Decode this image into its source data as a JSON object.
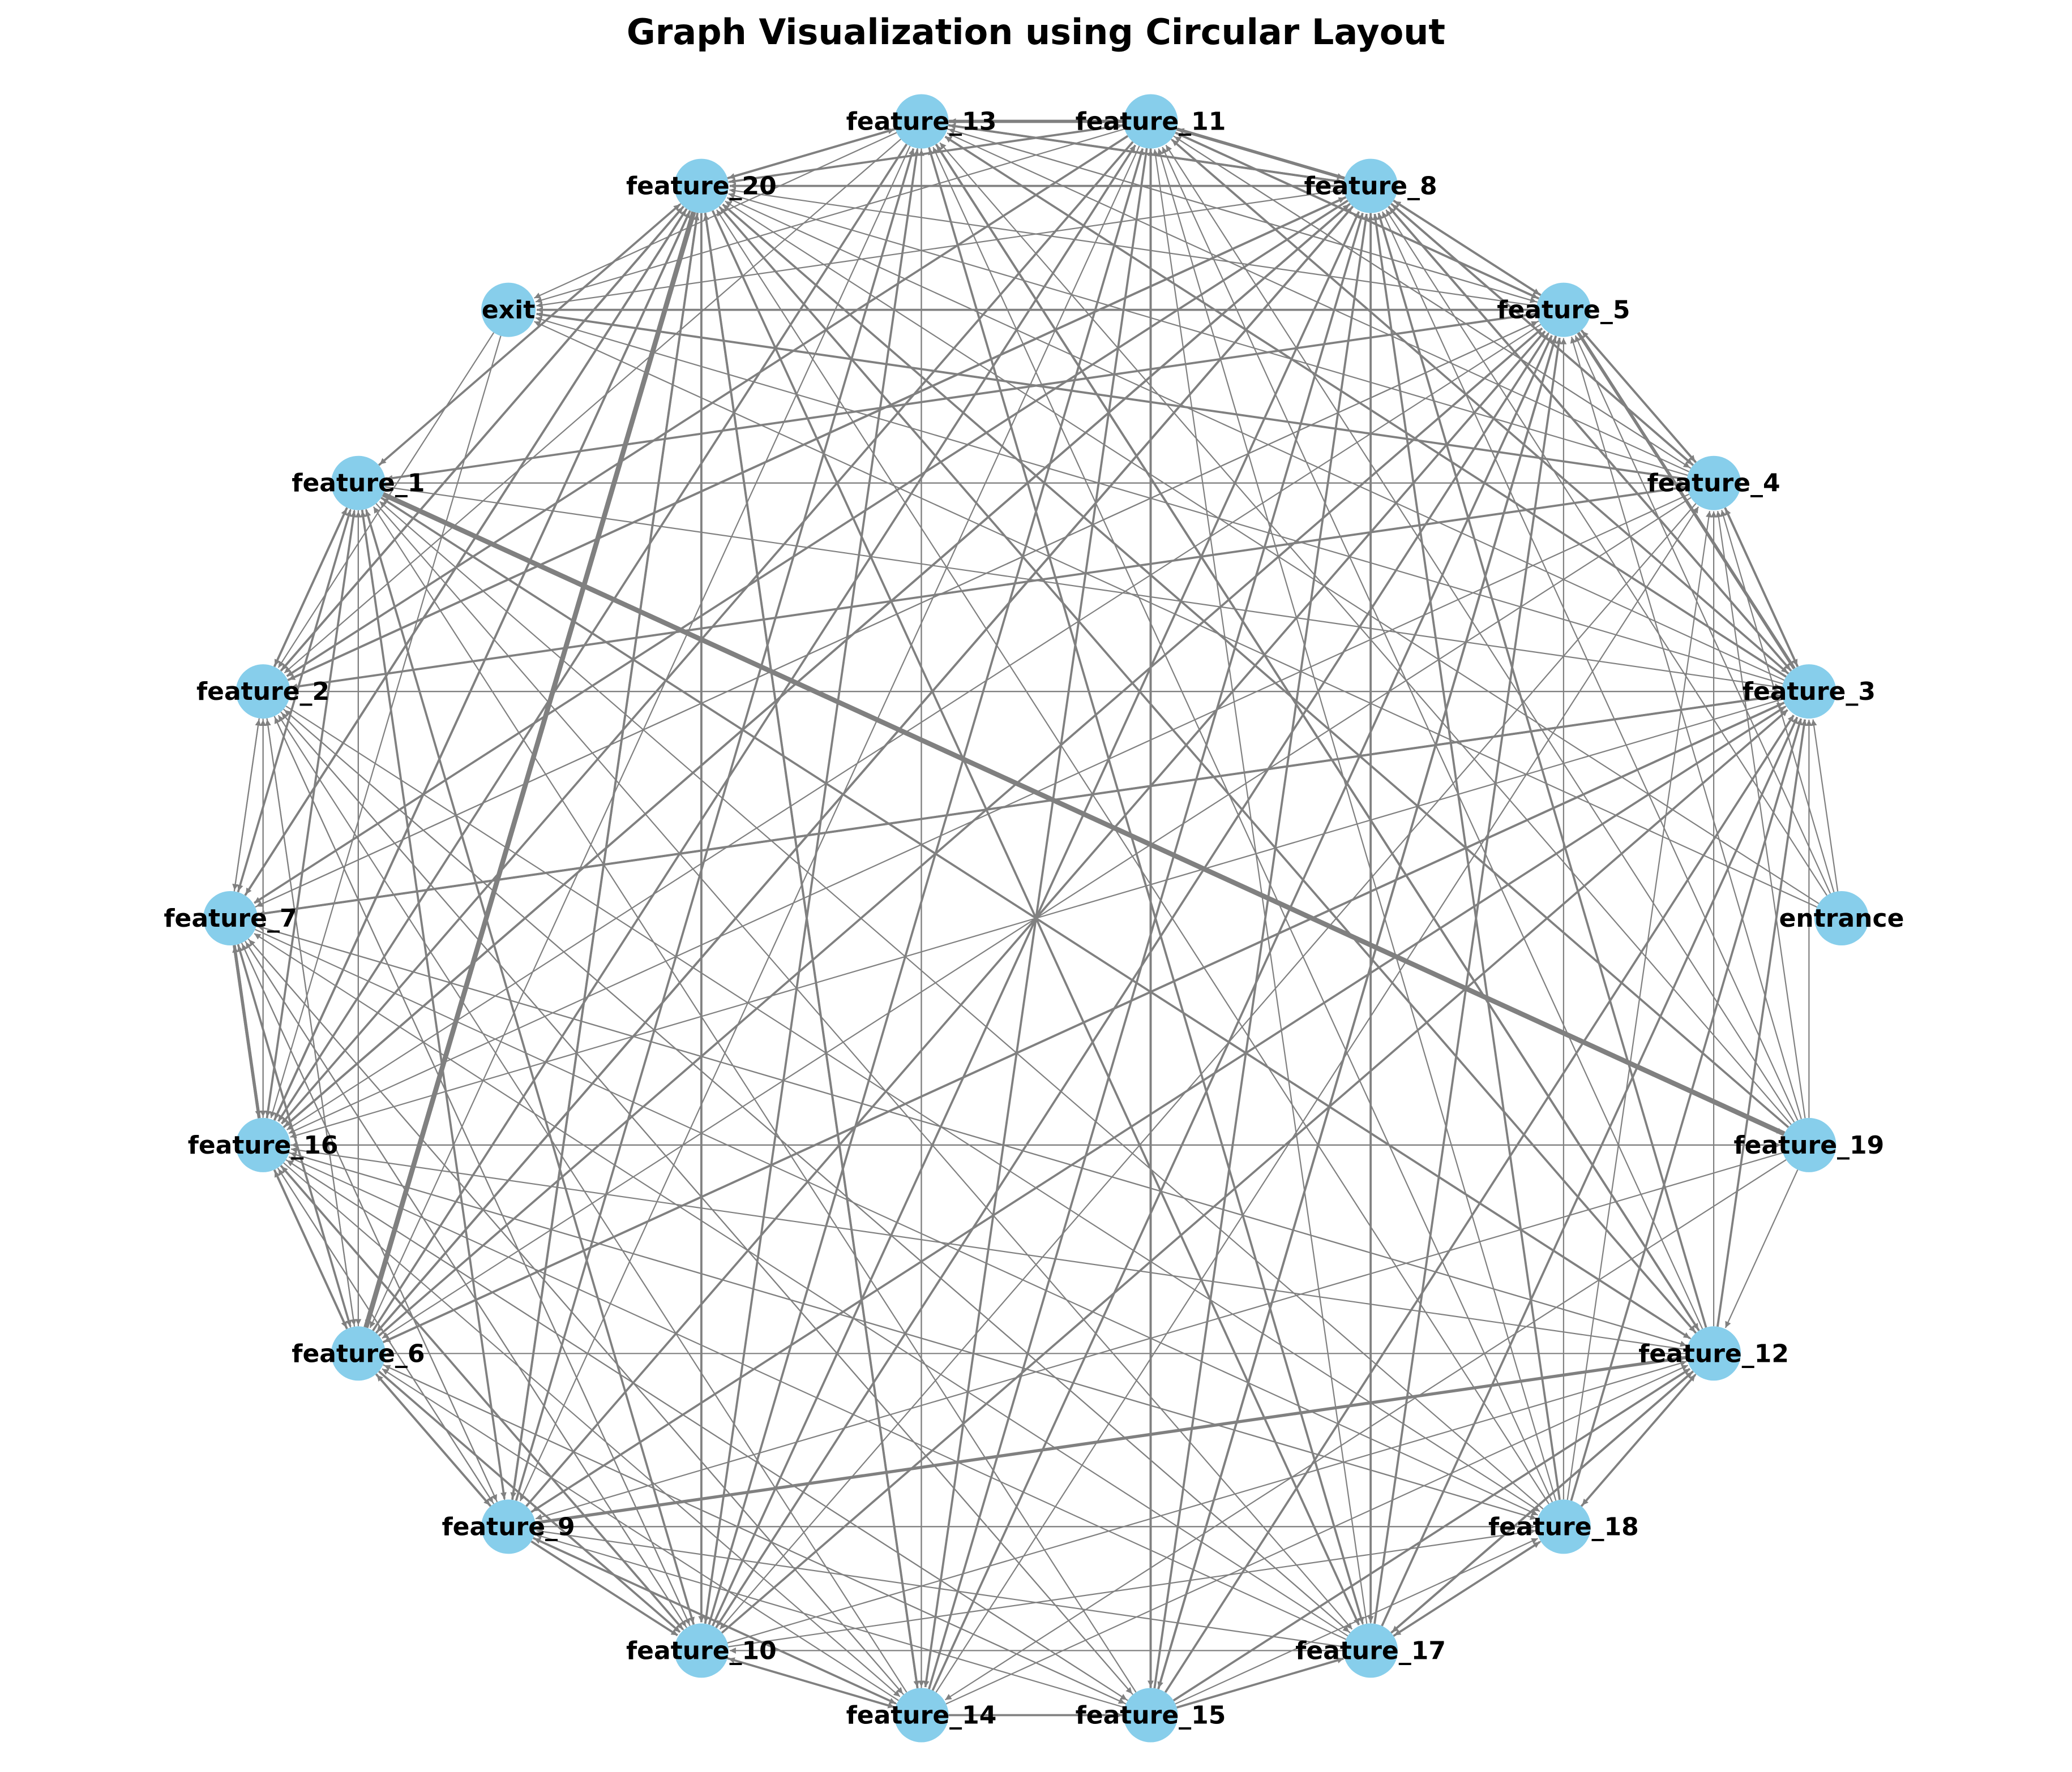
{
  "title": "Graph Visualization using Circular Layout",
  "colors": {
    "node_fill": "#87ceeb",
    "edge_color": "#808080",
    "label_color": "#000000",
    "background": "#ffffff"
  },
  "chart_data": {
    "type": "directed-graph",
    "layout": "circular",
    "title": "Graph Visualization using Circular Layout",
    "nodes": [
      "entrance",
      "feature_3",
      "feature_4",
      "feature_5",
      "feature_8",
      "feature_11",
      "feature_13",
      "feature_20",
      "exit",
      "feature_1",
      "feature_2",
      "feature_7",
      "feature_16",
      "feature_6",
      "feature_9",
      "feature_10",
      "feature_14",
      "feature_15",
      "feature_17",
      "feature_18",
      "feature_12",
      "feature_19"
    ],
    "edges": [
      [
        "entrance",
        "feature_3",
        1
      ],
      [
        "entrance",
        "feature_4",
        1
      ],
      [
        "entrance",
        "feature_5",
        1
      ],
      [
        "entrance",
        "feature_8",
        1
      ],
      [
        "entrance",
        "feature_20",
        1
      ],
      [
        "entrance",
        "exit",
        1
      ],
      [
        "feature_19",
        "feature_1",
        5
      ],
      [
        "feature_19",
        "feature_16",
        1
      ],
      [
        "feature_19",
        "feature_20",
        2
      ],
      [
        "feature_19",
        "feature_13",
        1
      ],
      [
        "feature_19",
        "feature_11",
        1
      ],
      [
        "feature_19",
        "feature_8",
        1
      ],
      [
        "feature_19",
        "feature_5",
        1
      ],
      [
        "feature_19",
        "feature_3",
        1
      ],
      [
        "feature_19",
        "feature_4",
        1
      ],
      [
        "feature_19",
        "feature_9",
        1
      ],
      [
        "feature_19",
        "feature_14",
        1
      ],
      [
        "feature_19",
        "feature_12",
        1
      ],
      [
        "feature_6",
        "feature_20",
        5
      ],
      [
        "feature_6",
        "feature_11",
        2
      ],
      [
        "feature_6",
        "feature_8",
        2
      ],
      [
        "feature_6",
        "feature_5",
        2
      ],
      [
        "feature_6",
        "feature_3",
        2
      ],
      [
        "feature_6",
        "feature_9",
        2
      ],
      [
        "feature_6",
        "feature_2",
        1
      ],
      [
        "feature_6",
        "feature_7",
        1
      ],
      [
        "feature_6",
        "feature_16",
        2
      ],
      [
        "feature_6",
        "feature_1",
        1
      ],
      [
        "feature_6",
        "feature_10",
        2
      ],
      [
        "feature_6",
        "feature_15",
        1
      ],
      [
        "feature_9",
        "feature_12",
        3
      ],
      [
        "feature_9",
        "feature_20",
        2
      ],
      [
        "feature_9",
        "feature_13",
        2
      ],
      [
        "feature_9",
        "feature_5",
        2
      ],
      [
        "feature_9",
        "feature_3",
        2
      ],
      [
        "feature_9",
        "feature_10",
        2
      ],
      [
        "feature_9",
        "feature_14",
        2
      ],
      [
        "feature_9",
        "feature_16",
        1
      ],
      [
        "feature_9",
        "feature_1",
        1
      ],
      [
        "feature_9",
        "feature_7",
        1
      ],
      [
        "feature_9",
        "feature_18",
        1
      ],
      [
        "feature_9",
        "feature_6",
        2
      ],
      [
        "feature_10",
        "feature_8",
        2
      ],
      [
        "feature_10",
        "feature_11",
        2
      ],
      [
        "feature_10",
        "feature_13",
        2
      ],
      [
        "feature_10",
        "feature_5",
        2
      ],
      [
        "feature_10",
        "feature_3",
        2
      ],
      [
        "feature_10",
        "feature_14",
        2
      ],
      [
        "feature_10",
        "feature_1",
        2
      ],
      [
        "feature_10",
        "feature_7",
        1
      ],
      [
        "feature_10",
        "feature_2",
        1
      ],
      [
        "feature_10",
        "feature_16",
        1
      ],
      [
        "feature_10",
        "feature_18",
        1
      ],
      [
        "feature_10",
        "feature_12",
        1
      ],
      [
        "feature_14",
        "feature_8",
        2
      ],
      [
        "feature_14",
        "feature_5",
        2
      ],
      [
        "feature_14",
        "feature_13",
        1
      ],
      [
        "feature_14",
        "feature_20",
        2
      ],
      [
        "feature_14",
        "feature_4",
        1
      ],
      [
        "feature_14",
        "feature_15",
        2
      ],
      [
        "feature_14",
        "feature_12",
        1
      ],
      [
        "feature_14",
        "feature_7",
        1
      ],
      [
        "feature_14",
        "feature_2",
        1
      ],
      [
        "feature_14",
        "feature_9",
        1
      ],
      [
        "feature_14",
        "feature_6",
        1
      ],
      [
        "feature_14",
        "feature_10",
        1
      ],
      [
        "feature_15",
        "feature_11",
        2
      ],
      [
        "feature_15",
        "feature_8",
        2
      ],
      [
        "feature_15",
        "feature_5",
        2
      ],
      [
        "feature_15",
        "feature_3",
        2
      ],
      [
        "feature_15",
        "feature_17",
        2
      ],
      [
        "feature_15",
        "feature_12",
        2
      ],
      [
        "feature_15",
        "feature_18",
        1
      ],
      [
        "feature_15",
        "feature_1",
        1
      ],
      [
        "feature_15",
        "feature_2",
        1
      ],
      [
        "feature_15",
        "feature_9",
        1
      ],
      [
        "feature_15",
        "feature_16",
        1
      ],
      [
        "feature_15",
        "feature_6",
        1
      ],
      [
        "feature_17",
        "feature_18",
        2
      ],
      [
        "feature_17",
        "feature_12",
        2
      ],
      [
        "feature_17",
        "feature_3",
        2
      ],
      [
        "feature_17",
        "feature_5",
        2
      ],
      [
        "feature_17",
        "feature_8",
        1
      ],
      [
        "feature_17",
        "feature_11",
        1
      ],
      [
        "feature_17",
        "feature_13",
        1
      ],
      [
        "feature_17",
        "feature_7",
        1
      ],
      [
        "feature_17",
        "feature_16",
        1
      ],
      [
        "feature_17",
        "feature_9",
        1
      ],
      [
        "feature_17",
        "feature_10",
        1
      ],
      [
        "feature_17",
        "feature_2",
        1
      ],
      [
        "feature_18",
        "feature_12",
        2
      ],
      [
        "feature_18",
        "feature_3",
        2
      ],
      [
        "feature_18",
        "feature_4",
        1
      ],
      [
        "feature_18",
        "feature_5",
        1
      ],
      [
        "feature_18",
        "feature_8",
        2
      ],
      [
        "feature_18",
        "feature_11",
        1
      ],
      [
        "feature_18",
        "feature_13",
        1
      ],
      [
        "feature_18",
        "feature_20",
        1
      ],
      [
        "feature_18",
        "feature_9",
        1
      ],
      [
        "feature_18",
        "feature_16",
        1
      ],
      [
        "feature_18",
        "feature_1",
        1
      ],
      [
        "feature_18",
        "feature_17",
        1
      ],
      [
        "feature_12",
        "feature_3",
        2
      ],
      [
        "feature_12",
        "feature_4",
        1
      ],
      [
        "feature_12",
        "feature_8",
        2
      ],
      [
        "feature_12",
        "feature_13",
        2
      ],
      [
        "feature_12",
        "feature_20",
        2
      ],
      [
        "feature_12",
        "feature_1",
        1
      ],
      [
        "feature_12",
        "feature_16",
        1
      ],
      [
        "feature_12",
        "feature_6",
        1
      ],
      [
        "feature_12",
        "feature_17",
        2
      ],
      [
        "feature_12",
        "feature_18",
        1
      ],
      [
        "feature_12",
        "feature_11",
        1
      ],
      [
        "feature_12",
        "feature_7",
        1
      ],
      [
        "feature_3",
        "feature_5",
        3
      ],
      [
        "feature_3",
        "feature_4",
        2
      ],
      [
        "feature_3",
        "feature_8",
        2
      ],
      [
        "feature_3",
        "feature_11",
        2
      ],
      [
        "feature_3",
        "feature_13",
        2
      ],
      [
        "feature_3",
        "feature_20",
        1
      ],
      [
        "feature_3",
        "exit",
        1
      ],
      [
        "feature_3",
        "feature_7",
        2
      ],
      [
        "feature_3",
        "feature_16",
        1
      ],
      [
        "feature_3",
        "feature_6",
        2
      ],
      [
        "feature_3",
        "feature_9",
        1
      ],
      [
        "feature_3",
        "feature_2",
        1
      ],
      [
        "feature_4",
        "feature_5",
        2
      ],
      [
        "feature_4",
        "feature_8",
        2
      ],
      [
        "feature_4",
        "feature_11",
        1
      ],
      [
        "feature_4",
        "exit",
        2
      ],
      [
        "feature_4",
        "feature_1",
        1
      ],
      [
        "feature_4",
        "feature_2",
        2
      ],
      [
        "feature_4",
        "feature_3",
        2
      ],
      [
        "feature_4",
        "feature_16",
        1
      ],
      [
        "feature_4",
        "feature_6",
        1
      ],
      [
        "feature_4",
        "feature_20",
        1
      ],
      [
        "feature_4",
        "feature_13",
        1
      ],
      [
        "feature_4",
        "feature_10",
        1
      ],
      [
        "feature_5",
        "feature_8",
        2
      ],
      [
        "feature_5",
        "feature_11",
        2
      ],
      [
        "feature_5",
        "feature_13",
        1
      ],
      [
        "feature_5",
        "feature_20",
        1
      ],
      [
        "feature_5",
        "exit",
        2
      ],
      [
        "feature_5",
        "feature_1",
        2
      ],
      [
        "feature_5",
        "feature_16",
        1
      ],
      [
        "feature_5",
        "feature_7",
        1
      ],
      [
        "feature_5",
        "feature_3",
        3
      ],
      [
        "feature_5",
        "feature_4",
        2
      ],
      [
        "feature_5",
        "feature_15",
        2
      ],
      [
        "feature_5",
        "feature_10",
        1
      ],
      [
        "feature_8",
        "feature_11",
        3
      ],
      [
        "feature_8",
        "feature_13",
        2
      ],
      [
        "feature_8",
        "feature_20",
        2
      ],
      [
        "feature_8",
        "exit",
        1
      ],
      [
        "feature_8",
        "feature_2",
        2
      ],
      [
        "feature_8",
        "feature_7",
        2
      ],
      [
        "feature_8",
        "feature_16",
        2
      ],
      [
        "feature_8",
        "feature_5",
        2
      ],
      [
        "feature_8",
        "feature_3",
        2
      ],
      [
        "feature_8",
        "feature_4",
        2
      ],
      [
        "feature_8",
        "feature_6",
        2
      ],
      [
        "feature_8",
        "feature_17",
        2
      ],
      [
        "feature_11",
        "feature_13",
        3
      ],
      [
        "feature_11",
        "feature_20",
        2
      ],
      [
        "feature_11",
        "exit",
        1
      ],
      [
        "feature_11",
        "feature_2",
        2
      ],
      [
        "feature_11",
        "feature_16",
        2
      ],
      [
        "feature_11",
        "feature_8",
        3
      ],
      [
        "feature_11",
        "feature_5",
        2
      ],
      [
        "feature_11",
        "feature_4",
        1
      ],
      [
        "feature_11",
        "feature_3",
        1
      ],
      [
        "feature_11",
        "feature_14",
        2
      ],
      [
        "feature_11",
        "feature_15",
        2
      ],
      [
        "feature_11",
        "feature_9",
        1
      ],
      [
        "feature_13",
        "feature_20",
        2
      ],
      [
        "feature_13",
        "exit",
        1
      ],
      [
        "feature_13",
        "feature_16",
        2
      ],
      [
        "feature_13",
        "feature_11",
        3
      ],
      [
        "feature_13",
        "feature_8",
        2
      ],
      [
        "feature_13",
        "feature_5",
        1
      ],
      [
        "feature_13",
        "feature_12",
        2
      ],
      [
        "feature_13",
        "feature_17",
        2
      ],
      [
        "feature_13",
        "feature_14",
        1
      ],
      [
        "feature_13",
        "feature_10",
        1
      ],
      [
        "feature_13",
        "feature_6",
        1
      ],
      [
        "feature_13",
        "feature_2",
        1
      ],
      [
        "feature_20",
        "feature_6",
        5
      ],
      [
        "feature_20",
        "feature_2",
        2
      ],
      [
        "feature_20",
        "feature_1",
        1
      ],
      [
        "feature_20",
        "feature_7",
        2
      ],
      [
        "feature_20",
        "feature_16",
        2
      ],
      [
        "feature_20",
        "feature_9",
        2
      ],
      [
        "feature_20",
        "feature_10",
        2
      ],
      [
        "feature_20",
        "feature_14",
        2
      ],
      [
        "feature_20",
        "feature_17",
        2
      ],
      [
        "feature_20",
        "feature_12",
        1
      ],
      [
        "feature_20",
        "feature_13",
        2
      ],
      [
        "feature_20",
        "feature_11",
        1
      ],
      [
        "feature_1",
        "feature_2",
        2
      ],
      [
        "feature_1",
        "feature_7",
        1
      ],
      [
        "feature_1",
        "feature_16",
        1
      ],
      [
        "feature_1",
        "feature_6",
        1
      ],
      [
        "feature_1",
        "feature_9",
        2
      ],
      [
        "feature_1",
        "feature_10",
        1
      ],
      [
        "feature_1",
        "feature_12",
        2
      ],
      [
        "feature_1",
        "feature_17",
        1
      ],
      [
        "feature_1",
        "feature_19",
        5
      ],
      [
        "feature_1",
        "feature_4",
        1
      ],
      [
        "feature_1",
        "feature_3",
        1
      ],
      [
        "feature_1",
        "feature_20",
        2
      ],
      [
        "feature_2",
        "feature_1",
        2
      ],
      [
        "feature_2",
        "feature_7",
        1
      ],
      [
        "feature_2",
        "feature_16",
        1
      ],
      [
        "feature_2",
        "feature_6",
        1
      ],
      [
        "feature_2",
        "feature_10",
        1
      ],
      [
        "feature_2",
        "feature_15",
        1
      ],
      [
        "feature_2",
        "feature_17",
        1
      ],
      [
        "feature_2",
        "feature_18",
        1
      ],
      [
        "feature_2",
        "feature_3",
        1
      ],
      [
        "feature_2",
        "feature_4",
        1
      ],
      [
        "feature_2",
        "feature_8",
        2
      ],
      [
        "feature_2",
        "feature_20",
        2
      ],
      [
        "feature_7",
        "feature_16",
        3
      ],
      [
        "feature_7",
        "feature_6",
        2
      ],
      [
        "feature_7",
        "feature_2",
        1
      ],
      [
        "feature_7",
        "feature_1",
        2
      ],
      [
        "feature_7",
        "feature_9",
        1
      ],
      [
        "feature_7",
        "feature_10",
        1
      ],
      [
        "feature_7",
        "feature_14",
        1
      ],
      [
        "feature_7",
        "feature_18",
        1
      ],
      [
        "feature_7",
        "feature_12",
        1
      ],
      [
        "feature_7",
        "feature_3",
        2
      ],
      [
        "feature_7",
        "feature_5",
        1
      ],
      [
        "feature_7",
        "feature_20",
        2
      ],
      [
        "feature_16",
        "feature_7",
        3
      ],
      [
        "feature_16",
        "feature_6",
        2
      ],
      [
        "feature_16",
        "feature_2",
        1
      ],
      [
        "feature_16",
        "feature_1",
        2
      ],
      [
        "feature_16",
        "feature_9",
        1
      ],
      [
        "feature_16",
        "feature_10",
        2
      ],
      [
        "feature_16",
        "feature_14",
        1
      ],
      [
        "feature_16",
        "feature_15",
        1
      ],
      [
        "feature_16",
        "feature_18",
        1
      ],
      [
        "feature_16",
        "feature_19",
        1
      ],
      [
        "feature_16",
        "feature_8",
        2
      ],
      [
        "feature_16",
        "feature_20",
        2
      ],
      [
        "exit",
        "feature_2",
        1
      ],
      [
        "exit",
        "feature_16",
        1
      ]
    ]
  }
}
